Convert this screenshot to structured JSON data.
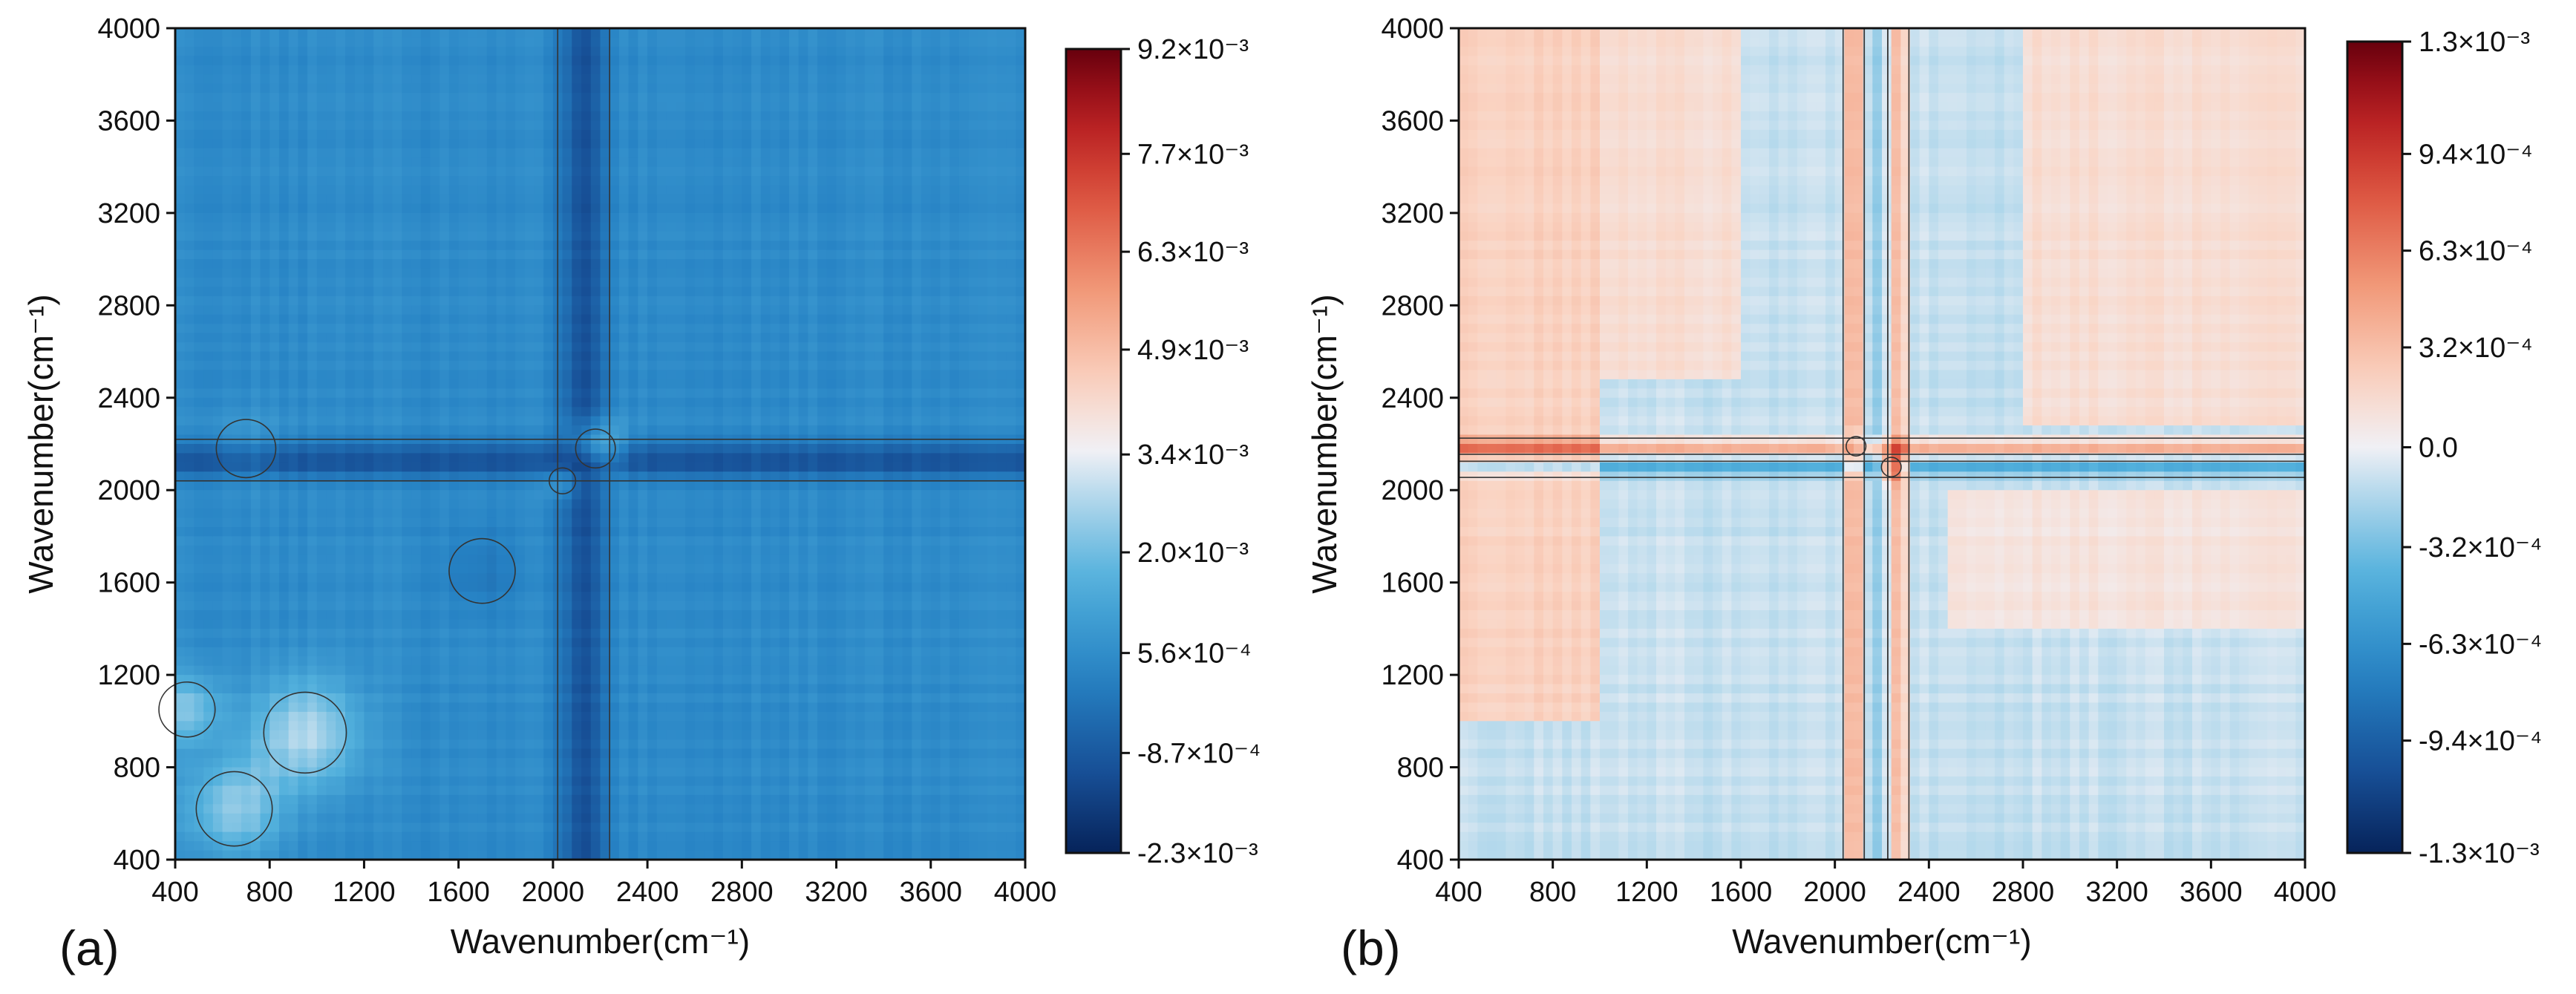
{
  "chart_data": [
    {
      "panel_label": "(a)",
      "type": "heatmap",
      "xlabel": "Wavenumber(cm⁻¹)",
      "ylabel": "Wavenumber(cm⁻¹)",
      "xlim": [
        400,
        4000
      ],
      "ylim": [
        400,
        4000
      ],
      "xticks": [
        "400",
        "800",
        "1200",
        "1600",
        "2000",
        "2400",
        "2800",
        "3200",
        "3600",
        "4000"
      ],
      "yticks": [
        "400",
        "800",
        "1200",
        "1600",
        "2000",
        "2400",
        "2800",
        "3200",
        "3600",
        "4000"
      ],
      "colorbar": {
        "min": -0.0023,
        "max": 0.0092,
        "tick_labels": [
          "9.2×10⁻³",
          "7.7×10⁻³",
          "6.3×10⁻³",
          "4.9×10⁻³",
          "3.4×10⁻³",
          "2.0×10⁻³",
          "5.6×10⁻⁴",
          "-8.7×10⁻⁴",
          "-2.3×10⁻³"
        ],
        "tick_values": [
          0.0092,
          0.0077,
          0.0063,
          0.0049,
          0.0034,
          0.002,
          0.00056,
          -0.00087,
          -0.0023
        ]
      },
      "background_value": 0.0005,
      "features": [
        {
          "kind": "vertical_band",
          "center": 2130,
          "halfwidth": 110,
          "value": -0.0012
        },
        {
          "kind": "horizontal_band",
          "center": 2130,
          "halfwidth": 90,
          "value": -0.0011
        },
        {
          "kind": "spot",
          "x": 2180,
          "y": 2180,
          "radius": 120,
          "value": 0.0028
        },
        {
          "kind": "spot",
          "x": 2040,
          "y": 2040,
          "radius": 80,
          "value": 0.0015
        },
        {
          "kind": "spot",
          "x": 950,
          "y": 950,
          "radius": 250,
          "value": 0.0028
        },
        {
          "kind": "spot",
          "x": 650,
          "y": 620,
          "radius": 230,
          "value": 0.0024
        },
        {
          "kind": "spot",
          "x": 450,
          "y": 1050,
          "radius": 170,
          "value": 0.0022
        },
        {
          "kind": "spot",
          "x": 1700,
          "y": 1650,
          "radius": 200,
          "value": 0.0
        },
        {
          "kind": "spot",
          "x": 700,
          "y": 2180,
          "radius": 180,
          "value": 0.001
        }
      ]
    },
    {
      "panel_label": "(b)",
      "type": "heatmap",
      "xlabel": "Wavenumber(cm⁻¹)",
      "ylabel": "Wavenumber(cm⁻¹)",
      "xlim": [
        400,
        4000
      ],
      "ylim": [
        400,
        4000
      ],
      "xticks": [
        "400",
        "800",
        "1200",
        "1600",
        "2000",
        "2400",
        "2800",
        "3200",
        "3600",
        "4000"
      ],
      "yticks": [
        "400",
        "800",
        "1200",
        "1600",
        "2000",
        "2400",
        "2800",
        "3200",
        "3600",
        "4000"
      ],
      "colorbar": {
        "min": -0.0013,
        "max": 0.0013,
        "tick_labels": [
          "1.3×10⁻³",
          "9.4×10⁻⁴",
          "6.3×10⁻⁴",
          "3.2×10⁻⁴",
          "0.0",
          "-3.2×10⁻⁴",
          "-6.3×10⁻⁴",
          "-9.4×10⁻⁴",
          "-1.3×10⁻³"
        ],
        "tick_values": [
          0.0013,
          0.00094,
          0.00063,
          0.00032,
          0.0,
          -0.00032,
          -0.00063,
          -0.00094,
          -0.0013
        ]
      },
      "background_value": -0.0001,
      "features": [
        {
          "kind": "vertical_band",
          "center": 2080,
          "halfwidth": 45,
          "value": 0.00045
        },
        {
          "kind": "vertical_band",
          "center": 2270,
          "halfwidth": 45,
          "value": 0.00035
        },
        {
          "kind": "vertical_band",
          "center": 2175,
          "halfwidth": 50,
          "value": -0.00025
        },
        {
          "kind": "horizontal_band",
          "center": 2190,
          "halfwidth": 35,
          "value": 0.00045
        },
        {
          "kind": "horizontal_band",
          "center": 2090,
          "halfwidth": 35,
          "value": -0.00045
        },
        {
          "kind": "region",
          "x": [
            400,
            1000
          ],
          "y": [
            1000,
            4000
          ],
          "value": 0.0003
        },
        {
          "kind": "region",
          "x": [
            1000,
            1600
          ],
          "y": [
            2500,
            4000
          ],
          "value": 0.0002
        },
        {
          "kind": "region",
          "x": [
            2800,
            4000
          ],
          "y": [
            2300,
            4000
          ],
          "value": 0.0002
        },
        {
          "kind": "region",
          "x": [
            2500,
            4000
          ],
          "y": [
            1400,
            2000
          ],
          "value": 0.00015
        },
        {
          "kind": "spot",
          "x": 2090,
          "y": 2190,
          "radius": 60,
          "value": -0.0006
        },
        {
          "kind": "spot",
          "x": 2240,
          "y": 2100,
          "radius": 60,
          "value": 0.0007
        }
      ]
    }
  ]
}
